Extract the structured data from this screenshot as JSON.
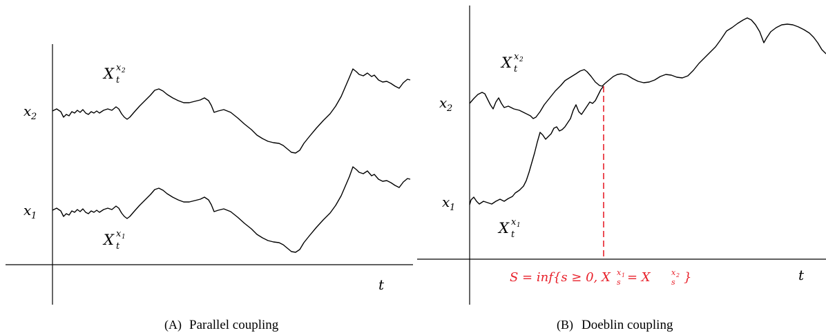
{
  "panel_a": {
    "caption_tag": "(A)",
    "caption_text": "Parallel coupling",
    "label_x2": {
      "base": "x",
      "sub": "2"
    },
    "label_x1": {
      "base": "x",
      "sub": "1"
    },
    "label_upper_process": {
      "base": "X",
      "sub": "t",
      "sup": "x",
      "supsub": "2"
    },
    "label_lower_process": {
      "base": "X",
      "sub": "t",
      "sup": "x",
      "supsub": "1"
    },
    "axis_label_t": "t"
  },
  "panel_b": {
    "caption_tag": "(B)",
    "caption_text": "Doeblin coupling",
    "label_x2": {
      "base": "x",
      "sub": "2"
    },
    "label_x1": {
      "base": "x",
      "sub": "1"
    },
    "label_upper_process": {
      "base": "X",
      "sub": "t",
      "sup": "x",
      "supsub": "2"
    },
    "label_lower_process": {
      "base": "X",
      "sub": "t",
      "sup": "x",
      "supsub": "1"
    },
    "axis_label_t": "t",
    "coupling_time": {
      "pre": "S = inf{s ≥ 0, X",
      "s1": "s",
      "sup1": "x",
      "supsub1": "1",
      "mid": " = X",
      "s2": "s",
      "sup2": "x",
      "supsub2": "2",
      "post": "}",
      "color": "#e8202a"
    }
  }
}
